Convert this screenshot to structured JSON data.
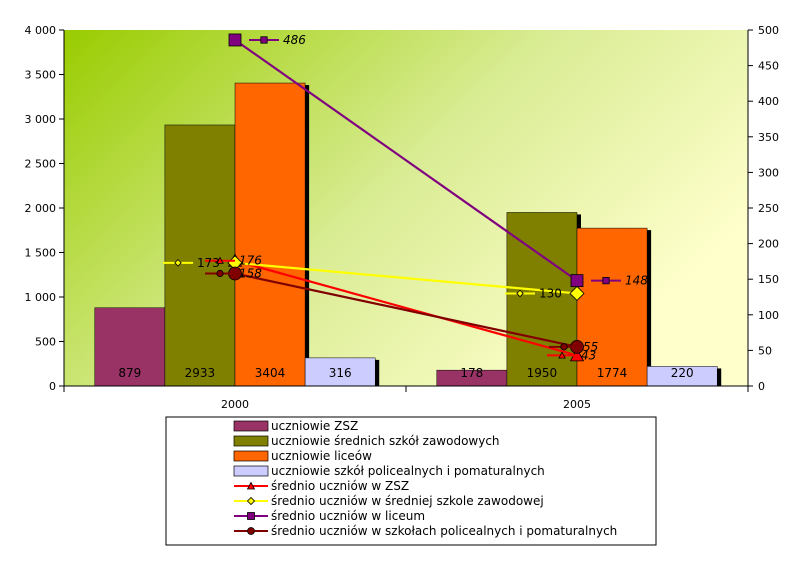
{
  "chart_data": {
    "type": "bar+line",
    "categories": [
      "2000",
      "2005"
    ],
    "y_left": {
      "min": 0,
      "max": 4000,
      "step": 500,
      "ticks": [
        "0",
        "500",
        "1 000",
        "1 500",
        "2 000",
        "2 500",
        "3 000",
        "3 500",
        "4 000"
      ]
    },
    "y_right": {
      "min": 0,
      "max": 500,
      "step": 50,
      "ticks": [
        "0",
        "50",
        "100",
        "150",
        "200",
        "250",
        "300",
        "350",
        "400",
        "450",
        "500"
      ]
    },
    "bar_series": [
      {
        "name": "uczniowie ZSZ",
        "color": "#993366",
        "values": [
          879,
          178
        ],
        "labels": [
          "879",
          "178"
        ]
      },
      {
        "name": "uczniowie średnich szkół zawodowych",
        "color": "#808000",
        "values": [
          2933,
          1950
        ],
        "labels": [
          "2933",
          "1950"
        ]
      },
      {
        "name": "uczniowie liceów",
        "color": "#ff6600",
        "values": [
          3404,
          1774
        ],
        "labels": [
          "3404",
          "1774"
        ]
      },
      {
        "name": "uczniowie szkół policealnych i pomaturalnych",
        "color": "#ccccff",
        "values": [
          316,
          220
        ],
        "labels": [
          "316",
          "220"
        ]
      }
    ],
    "line_series": [
      {
        "name": "średnio uczniów w ZSZ",
        "color": "#ff0000",
        "marker": "triangle",
        "values": [
          176,
          43
        ],
        "labels": [
          "176",
          "43"
        ]
      },
      {
        "name": "średnio uczniów w średniej szkole zawodowej",
        "color": "#ffff00",
        "marker": "diamond",
        "values": [
          173,
          130
        ],
        "labels": [
          "173",
          "130"
        ]
      },
      {
        "name": "średnio uczniów w liceum",
        "color": "#800080",
        "marker": "square",
        "values": [
          486,
          148
        ],
        "labels": [
          "486",
          "148"
        ]
      },
      {
        "name": "średnio uczniów w szkołach policealnych i pomaturalnych",
        "color": "#800000",
        "marker": "circle",
        "values": [
          158,
          55
        ],
        "labels": [
          "158",
          "55"
        ]
      }
    ],
    "legend_position": "bottom",
    "grid": false
  }
}
